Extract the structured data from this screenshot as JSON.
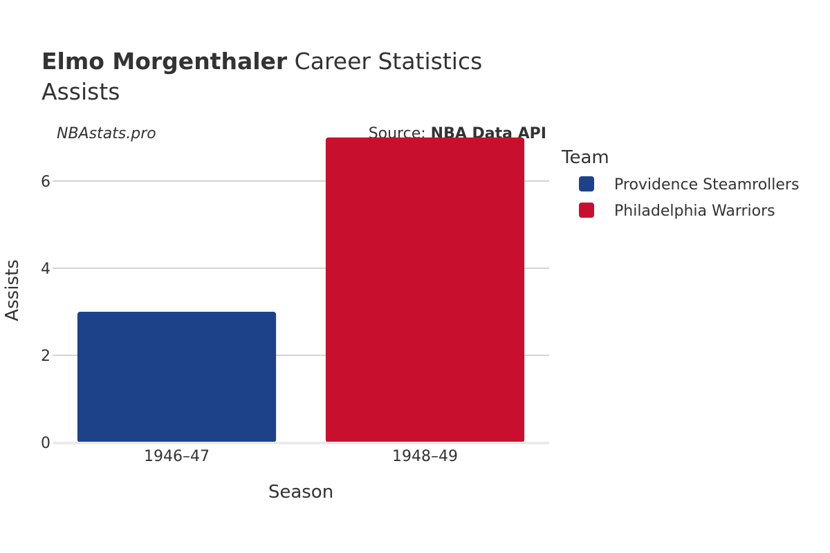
{
  "header": {
    "title_bold": "Elmo Morgenthaler",
    "title_rest": " Career Statistics",
    "subtitle": "Assists"
  },
  "watermark": "NBAstats.pro",
  "source": {
    "prefix": "Source: ",
    "name": "NBA Data API"
  },
  "legend": {
    "title": "Team",
    "items": [
      {
        "label": "Providence Steamrollers",
        "color": "#1d428a"
      },
      {
        "label": "Philadelphia Warriors",
        "color": "#c8102e"
      }
    ]
  },
  "chart_data": {
    "type": "bar",
    "title": "Elmo Morgenthaler Career Statistics",
    "subtitle": "Assists",
    "xlabel": "Season",
    "ylabel": "Assists",
    "categories": [
      "1946–47",
      "1948–49"
    ],
    "values": [
      3,
      7
    ],
    "bar_teams": [
      "Providence Steamrollers",
      "Philadelphia Warriors"
    ],
    "bar_colors": [
      "#1d428a",
      "#c8102e"
    ],
    "ylim": [
      0,
      7.3
    ],
    "yticks": [
      0,
      2,
      4,
      6
    ],
    "grid": true,
    "legend_position": "right"
  }
}
